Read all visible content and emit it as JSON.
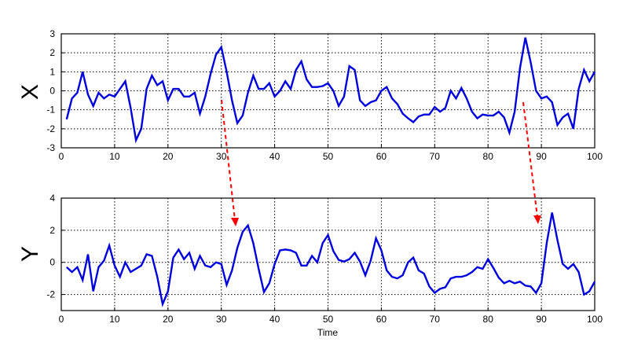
{
  "chart_data": [
    {
      "type": "line",
      "ylabel": "X",
      "xlabel": "",
      "xlim": [
        0,
        100
      ],
      "ylim": [
        -3,
        3
      ],
      "xticks": [
        "0",
        "10",
        "20",
        "30",
        "40",
        "50",
        "60",
        "70",
        "80",
        "90",
        "100"
      ],
      "yticks": [
        "-3",
        "-2",
        "-1",
        "0",
        "1",
        "2",
        "3"
      ],
      "grid": true,
      "series": [
        {
          "color": "#0000dd",
          "x": [
            1,
            2,
            3,
            4,
            5,
            6,
            7,
            8,
            9,
            10,
            11,
            12,
            13,
            14,
            15,
            16,
            17,
            18,
            19,
            20,
            21,
            22,
            23,
            24,
            25,
            26,
            27,
            28,
            29,
            30,
            31,
            32,
            33,
            34,
            35,
            36,
            37,
            38,
            39,
            40,
            41,
            42,
            43,
            44,
            45,
            46,
            47,
            48,
            49,
            50,
            51,
            52,
            53,
            54,
            55,
            56,
            57,
            58,
            59,
            60,
            61,
            62,
            63,
            64,
            65,
            66,
            67,
            68,
            69,
            70,
            71,
            72,
            73,
            74,
            75,
            76,
            77,
            78,
            79,
            80,
            81,
            82,
            83,
            84,
            85,
            86,
            87,
            88,
            89,
            90,
            91,
            92,
            93,
            94,
            95,
            96,
            97,
            98,
            99,
            100
          ],
          "values": [
            -1.5,
            -0.4,
            -0.1,
            1.0,
            -0.2,
            -0.8,
            -0.1,
            -0.4,
            -0.2,
            -0.3,
            0.1,
            0.5,
            -0.9,
            -2.6,
            -2.0,
            0.1,
            0.8,
            0.3,
            0.5,
            -0.5,
            0.1,
            0.1,
            -0.3,
            -0.3,
            -0.1,
            -1.2,
            -0.3,
            0.9,
            1.9,
            2.3,
            1.0,
            -0.5,
            -1.7,
            -1.3,
            -0.1,
            0.8,
            0.1,
            0.1,
            0.4,
            -0.3,
            0.0,
            0.5,
            0.1,
            1.1,
            1.55,
            0.6,
            0.2,
            0.2,
            0.25,
            0.4,
            0.0,
            -0.8,
            -0.3,
            1.3,
            1.1,
            -0.5,
            -0.8,
            -0.6,
            -0.5,
            0.0,
            0.2,
            -0.4,
            -0.7,
            -1.2,
            -1.45,
            -1.65,
            -1.35,
            -1.25,
            -1.25,
            -0.85,
            -1.1,
            -0.9,
            0.0,
            -0.4,
            0.15,
            -0.4,
            -1.1,
            -1.45,
            -1.25,
            -1.3,
            -1.3,
            -1.1,
            -1.4,
            -2.2,
            -1.1,
            1.2,
            2.8,
            1.5,
            0.0,
            -0.4,
            -0.3,
            -0.6,
            -1.8,
            -1.4,
            -1.2,
            -2.0,
            0.1,
            1.1,
            0.5,
            1.0
          ]
        }
      ],
      "annotation_arrow": {
        "color": "#ff0000",
        "style": "dashed"
      }
    },
    {
      "type": "line",
      "ylabel": "Y",
      "xlabel": "Time",
      "xlim": [
        0,
        100
      ],
      "ylim": [
        -3,
        4
      ],
      "xticks": [
        "0",
        "10",
        "20",
        "30",
        "40",
        "50",
        "60",
        "70",
        "80",
        "90",
        "100"
      ],
      "yticks": [
        "-2",
        "0",
        "2",
        "4"
      ],
      "grid": true,
      "series": [
        {
          "color": "#0000dd",
          "x": [
            1,
            2,
            3,
            4,
            5,
            6,
            7,
            8,
            9,
            10,
            11,
            12,
            13,
            14,
            15,
            16,
            17,
            18,
            19,
            20,
            21,
            22,
            23,
            24,
            25,
            26,
            27,
            28,
            29,
            30,
            31,
            32,
            33,
            34,
            35,
            36,
            37,
            38,
            39,
            40,
            41,
            42,
            43,
            44,
            45,
            46,
            47,
            48,
            49,
            50,
            51,
            52,
            53,
            54,
            55,
            56,
            57,
            58,
            59,
            60,
            61,
            62,
            63,
            64,
            65,
            66,
            67,
            68,
            69,
            70,
            71,
            72,
            73,
            74,
            75,
            76,
            77,
            78,
            79,
            80,
            81,
            82,
            83,
            84,
            85,
            86,
            87,
            88,
            89,
            90,
            91,
            92,
            93,
            94,
            95,
            96,
            97,
            98,
            99,
            100
          ],
          "values": [
            -0.3,
            -0.6,
            -0.3,
            -1.1,
            0.5,
            -1.8,
            -0.3,
            0.1,
            1.05,
            -0.2,
            -0.9,
            0.0,
            -0.6,
            -0.4,
            -0.2,
            0.5,
            0.4,
            -0.9,
            -2.6,
            -1.8,
            0.3,
            0.8,
            0.2,
            0.6,
            -0.4,
            0.4,
            -0.2,
            -0.3,
            0.0,
            -0.1,
            -1.4,
            -0.5,
            0.9,
            1.9,
            2.3,
            1.2,
            -0.4,
            -1.85,
            -1.3,
            -0.1,
            0.75,
            0.8,
            0.75,
            0.6,
            -0.2,
            -0.2,
            0.4,
            0.0,
            1.2,
            1.7,
            0.7,
            0.15,
            0.05,
            0.2,
            0.6,
            0.05,
            -0.8,
            0.1,
            1.5,
            0.75,
            -0.5,
            -0.9,
            -1.0,
            -0.8,
            0.0,
            0.3,
            -0.5,
            -0.7,
            -1.5,
            -1.9,
            -1.65,
            -1.55,
            -1.0,
            -0.9,
            -0.9,
            -0.8,
            -0.6,
            -0.3,
            -0.4,
            0.2,
            -0.35,
            -0.95,
            -1.3,
            -1.15,
            -1.3,
            -1.2,
            -1.45,
            -1.5,
            -1.9,
            -1.3,
            1.2,
            3.1,
            1.4,
            -0.1,
            -0.4,
            -0.1,
            -0.6,
            -2.0,
            -1.8,
            -1.2
          ]
        }
      ],
      "annotation_arrow": {
        "color": "#ff0000",
        "style": "dashed"
      }
    }
  ]
}
